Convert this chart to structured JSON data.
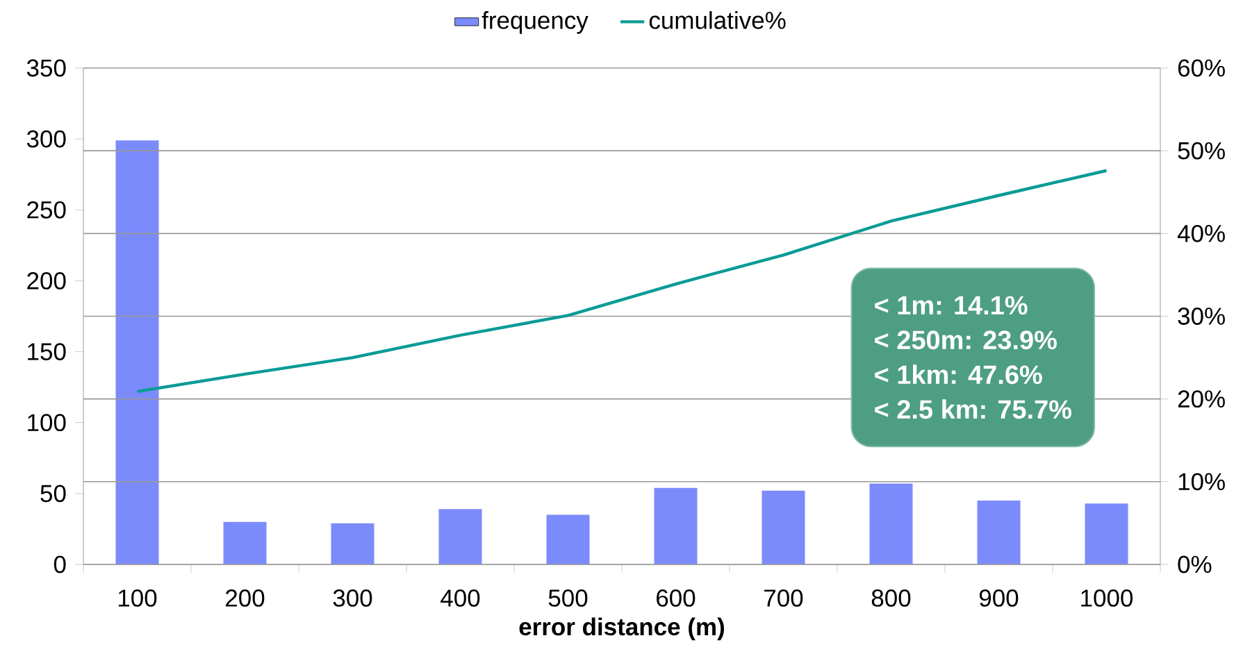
{
  "chart_data": {
    "type": "bar",
    "xlabel": "error distance (m)",
    "categories": [
      "100",
      "200",
      "300",
      "400",
      "500",
      "600",
      "700",
      "800",
      "900",
      "1000"
    ],
    "series": [
      {
        "name": "frequency",
        "color": "#7b8bfb",
        "values": [
          299,
          30,
          29,
          39,
          35,
          54,
          52,
          57,
          45,
          43
        ]
      },
      {
        "name": "cumulative%",
        "type": "line",
        "axis": "y2",
        "color": "#0a9b96",
        "values": [
          20.9,
          23.0,
          25.0,
          27.7,
          30.1,
          33.9,
          37.4,
          41.5,
          44.6,
          47.6
        ]
      }
    ],
    "ylim": [
      0,
      350
    ],
    "yticks": [
      0,
      50,
      100,
      150,
      200,
      250,
      300,
      350
    ],
    "y2lim": [
      0,
      60
    ],
    "y2ticks": [
      {
        "value": 0,
        "label": "0%"
      },
      {
        "value": 10,
        "label": "10%"
      },
      {
        "value": 20,
        "label": "20%"
      },
      {
        "value": 30,
        "label": "30%"
      },
      {
        "value": 40,
        "label": "40%"
      },
      {
        "value": 50,
        "label": "50%"
      },
      {
        "value": 60,
        "label": "60%"
      }
    ],
    "annotations": [
      "< 1m: 14.1%",
      "< 250m: 23.9%",
      "< 1km: 47.6%",
      "< 2.5 km: 75.7%"
    ],
    "grid": "y",
    "legend": "top",
    "marker": "none"
  }
}
